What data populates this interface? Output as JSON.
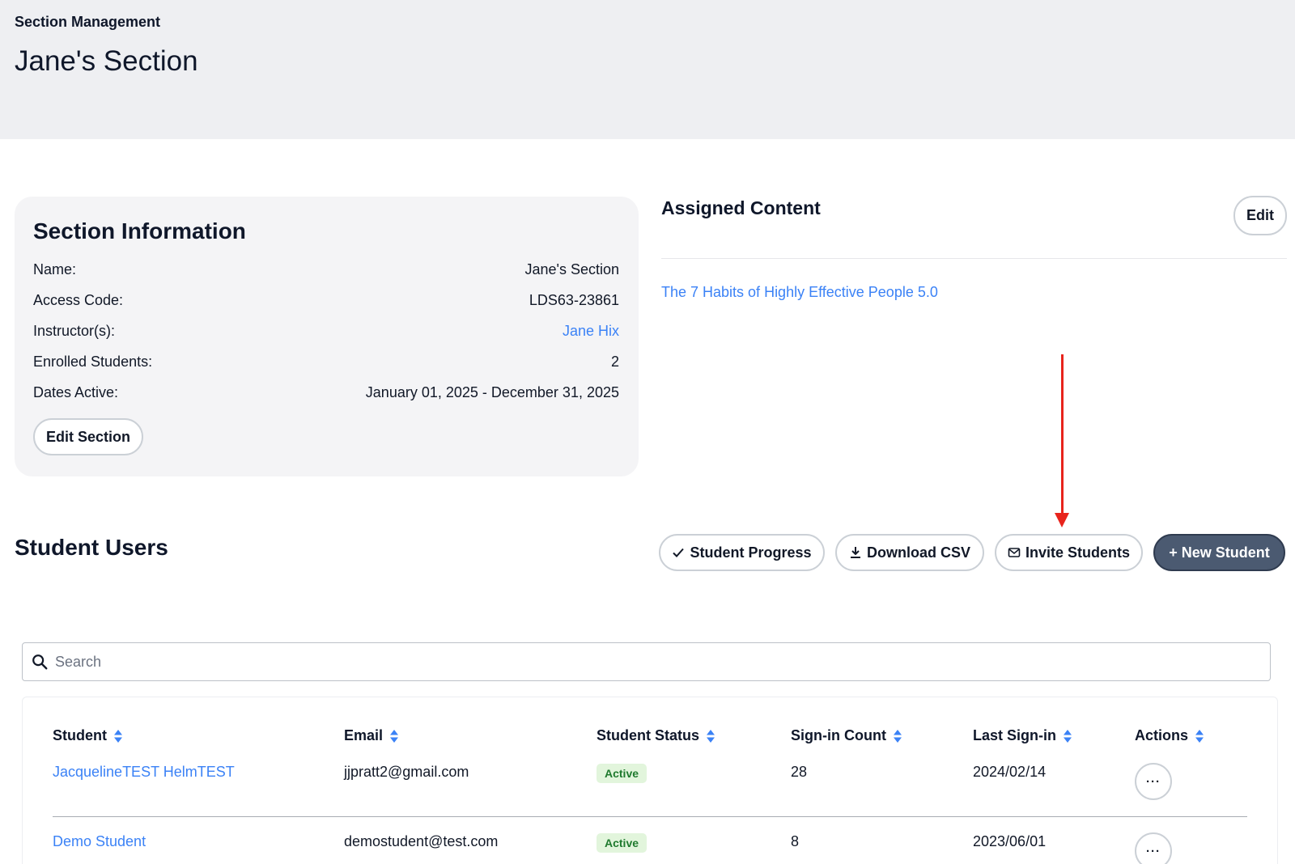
{
  "header": {
    "breadcrumb": "Section Management",
    "title": "Jane's Section"
  },
  "section_info": {
    "heading": "Section Information",
    "rows": [
      {
        "label": "Name:",
        "value": "Jane's Section"
      },
      {
        "label": "Access Code:",
        "value": "LDS63-23861"
      },
      {
        "label": "Instructor(s):",
        "value": "Jane Hix"
      },
      {
        "label": "Enrolled Students:",
        "value": "2"
      },
      {
        "label": "Dates Active:",
        "value": "January 01, 2025 - December 31, 2025"
      }
    ],
    "edit_button": "Edit Section"
  },
  "assigned_content": {
    "heading": "Assigned Content",
    "edit_button": "Edit",
    "items": [
      "The 7 Habits of Highly Effective People 5.0"
    ]
  },
  "annotation": {
    "arrow_color": "#e8241c"
  },
  "student_users": {
    "heading": "Student Users",
    "buttons": {
      "progress": "Student Progress",
      "csv": "Download CSV",
      "invite": "Invite Students",
      "new": "+ New Student"
    }
  },
  "search": {
    "placeholder": "Search",
    "value": ""
  },
  "table": {
    "columns": [
      "Student",
      "Email",
      "Student Status",
      "Sign-in Count",
      "Last Sign-in",
      "Actions"
    ],
    "rows": [
      {
        "student": "JacquelineTEST HelmTEST",
        "email": "jjpratt2@gmail.com",
        "status": "Active",
        "sign_in_count": "28",
        "last_sign_in": "2024/02/14",
        "actions": "···"
      },
      {
        "student": "Demo Student",
        "email": "demostudent@test.com",
        "status": "Active",
        "sign_in_count": "8",
        "last_sign_in": "2023/06/01",
        "actions": "···"
      }
    ]
  },
  "colors": {
    "link": "#3b82f6",
    "header_bg": "#eeeff2",
    "primary_button": "#4b5a71",
    "active_badge_bg": "#e2f5dc",
    "active_badge_text": "#1f7a2e",
    "sort_icon": "#3b82f6"
  }
}
